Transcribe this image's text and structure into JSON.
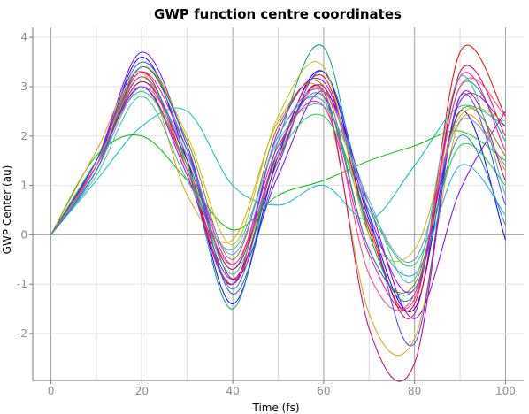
{
  "chart_data": {
    "type": "line",
    "title": "GWP function centre coordinates",
    "xlabel": "Time (fs)",
    "ylabel": "GWP Center (au)",
    "xlim": [
      -4,
      104
    ],
    "ylim": [
      -2.95,
      4.2
    ],
    "xticks": [
      0,
      20,
      40,
      60,
      80,
      100
    ],
    "yticks": [
      -2,
      -1,
      0,
      1,
      2,
      3,
      4
    ],
    "tick_labels_x": [
      "0",
      "20",
      "40",
      "60",
      "80",
      "100"
    ],
    "tick_labels_y": [
      "-2",
      "-1",
      "0",
      "1",
      "2",
      "3",
      "4"
    ],
    "grid": {
      "major_vertical": true,
      "minor_vertical": true,
      "horizontal": true
    },
    "legend": "none",
    "series": [
      {
        "color": "#7f00ff",
        "x": [
          0,
          10,
          20,
          30,
          40,
          50,
          60,
          70,
          80,
          90,
          100
        ],
        "y": [
          0,
          1.5,
          3.7,
          1.8,
          -0.9,
          1.2,
          2.9,
          0.6,
          -1.7,
          0.9,
          2.5
        ]
      },
      {
        "color": "#0000ff",
        "x": [
          0,
          10,
          20,
          30,
          40,
          50,
          60,
          70,
          80,
          90,
          100
        ],
        "y": [
          0,
          1.4,
          3.6,
          1.5,
          -1.4,
          1.6,
          3.3,
          0.3,
          -1.5,
          2.5,
          -0.1
        ]
      },
      {
        "color": "#ff0000",
        "x": [
          0,
          10,
          20,
          30,
          40,
          50,
          60,
          70,
          80,
          90,
          100
        ],
        "y": [
          0,
          1.3,
          3.3,
          1.3,
          -1.0,
          1.7,
          3.2,
          0.1,
          -1.4,
          3.7,
          2.4
        ]
      },
      {
        "color": "#00c0c0",
        "x": [
          0,
          10,
          20,
          30,
          40,
          50,
          60,
          70,
          80,
          90,
          100
        ],
        "y": [
          0,
          1.1,
          2.2,
          2.5,
          1.0,
          0.6,
          1.0,
          0.3,
          1.4,
          2.6,
          2.2
        ]
      },
      {
        "color": "#00bf00",
        "x": [
          0,
          10,
          20,
          30,
          40,
          50,
          60,
          70,
          80,
          90,
          100
        ],
        "y": [
          0,
          1.6,
          2.0,
          1.1,
          0.1,
          0.8,
          1.1,
          1.5,
          1.8,
          2.1,
          1.5
        ]
      },
      {
        "color": "#e0a000",
        "x": [
          0,
          10,
          20,
          30,
          40,
          50,
          60,
          70,
          80,
          90,
          100
        ],
        "y": [
          0,
          1.7,
          3.3,
          0.8,
          -0.1,
          2.3,
          2.8,
          -1.6,
          -2.1,
          2.3,
          1.3
        ]
      },
      {
        "color": "#c00080",
        "x": [
          0,
          10,
          20,
          30,
          40,
          50,
          60,
          70,
          80,
          90,
          100
        ],
        "y": [
          0,
          1.4,
          3.0,
          1.3,
          -0.9,
          1.5,
          2.9,
          -1.9,
          -2.6,
          2.8,
          1.1
        ]
      },
      {
        "color": "#20a0ff",
        "x": [
          0,
          10,
          20,
          30,
          40,
          50,
          60,
          70,
          80,
          90,
          100
        ],
        "y": [
          0,
          1.4,
          3.1,
          1.6,
          -0.7,
          2.0,
          2.7,
          0.2,
          -0.8,
          1.4,
          0.4
        ]
      },
      {
        "color": "#808000",
        "x": [
          0,
          10,
          20,
          30,
          40,
          50,
          60,
          70,
          80,
          90,
          100
        ],
        "y": [
          0,
          1.5,
          3.4,
          1.9,
          -0.5,
          2.2,
          3.0,
          -0.3,
          -1.0,
          2.5,
          1.6
        ]
      },
      {
        "color": "#00a080",
        "x": [
          0,
          10,
          20,
          30,
          40,
          50,
          60,
          70,
          80,
          90,
          100
        ],
        "y": [
          0,
          1.3,
          3.2,
          1.4,
          -1.5,
          1.9,
          3.8,
          0.0,
          -1.2,
          3.0,
          1.9
        ]
      },
      {
        "color": "#ff00c0",
        "x": [
          0,
          10,
          20,
          30,
          40,
          50,
          60,
          70,
          80,
          90,
          100
        ],
        "y": [
          0,
          1.5,
          3.3,
          1.7,
          -0.6,
          1.8,
          2.6,
          -0.4,
          -1.3,
          3.2,
          1.7
        ]
      },
      {
        "color": "#a000ff",
        "x": [
          0,
          10,
          20,
          30,
          40,
          50,
          60,
          70,
          80,
          90,
          100
        ],
        "y": [
          0,
          1.4,
          3.0,
          1.2,
          -1.0,
          2.1,
          3.1,
          0.4,
          -1.1,
          2.7,
          2.2
        ]
      },
      {
        "color": "#00dd40",
        "x": [
          0,
          10,
          20,
          30,
          40,
          50,
          60,
          70,
          80,
          90,
          100
        ],
        "y": [
          0,
          1.5,
          2.9,
          1.4,
          -0.8,
          1.6,
          2.4,
          0.5,
          -0.6,
          1.8,
          1.0
        ]
      },
      {
        "color": "#e00040",
        "x": [
          0,
          10,
          20,
          30,
          40,
          50,
          60,
          70,
          80,
          90,
          100
        ],
        "y": [
          0,
          1.4,
          3.1,
          1.5,
          -0.7,
          1.7,
          3.0,
          0.2,
          -1.6,
          3.3,
          2.0
        ]
      },
      {
        "color": "#4040ff",
        "x": [
          0,
          10,
          20,
          30,
          40,
          50,
          60,
          70,
          80,
          90,
          100
        ],
        "y": [
          0,
          1.5,
          3.5,
          1.8,
          -1.2,
          1.4,
          3.3,
          0.4,
          -2.2,
          2.8,
          0.6
        ]
      },
      {
        "color": "#8080ff",
        "x": [
          0,
          10,
          20,
          30,
          40,
          50,
          60,
          70,
          80,
          90,
          100
        ],
        "y": [
          0,
          1.3,
          3.0,
          1.6,
          -0.4,
          2.0,
          2.9,
          0.6,
          -0.5,
          2.3,
          1.4
        ]
      },
      {
        "color": "#40c0a0",
        "x": [
          0,
          10,
          20,
          30,
          40,
          50,
          60,
          70,
          80,
          90,
          100
        ],
        "y": [
          0,
          1.2,
          2.8,
          1.1,
          -0.3,
          1.9,
          2.6,
          0.7,
          -0.9,
          3.2,
          0.8
        ]
      },
      {
        "color": "#c0c000",
        "x": [
          0,
          10,
          20,
          30,
          40,
          50,
          60,
          70,
          80,
          90,
          100
        ],
        "y": [
          0,
          1.4,
          3.4,
          2.0,
          -0.2,
          2.4,
          3.4,
          0.0,
          -0.3,
          2.4,
          2.3
        ]
      },
      {
        "color": "#ff4080",
        "x": [
          0,
          10,
          20,
          30,
          40,
          50,
          60,
          70,
          80,
          90,
          100
        ],
        "y": [
          0,
          1.4,
          3.2,
          1.3,
          -0.6,
          1.6,
          2.9,
          -0.8,
          -1.2,
          3.0,
          2.4
        ]
      },
      {
        "color": "#2080c0",
        "x": [
          0,
          10,
          20,
          30,
          40,
          50,
          60,
          70,
          80,
          90,
          100
        ],
        "y": [
          0,
          1.3,
          3.4,
          1.7,
          -1.1,
          1.7,
          2.8,
          -0.3,
          -1.1,
          2.0,
          0.2
        ]
      }
    ]
  }
}
